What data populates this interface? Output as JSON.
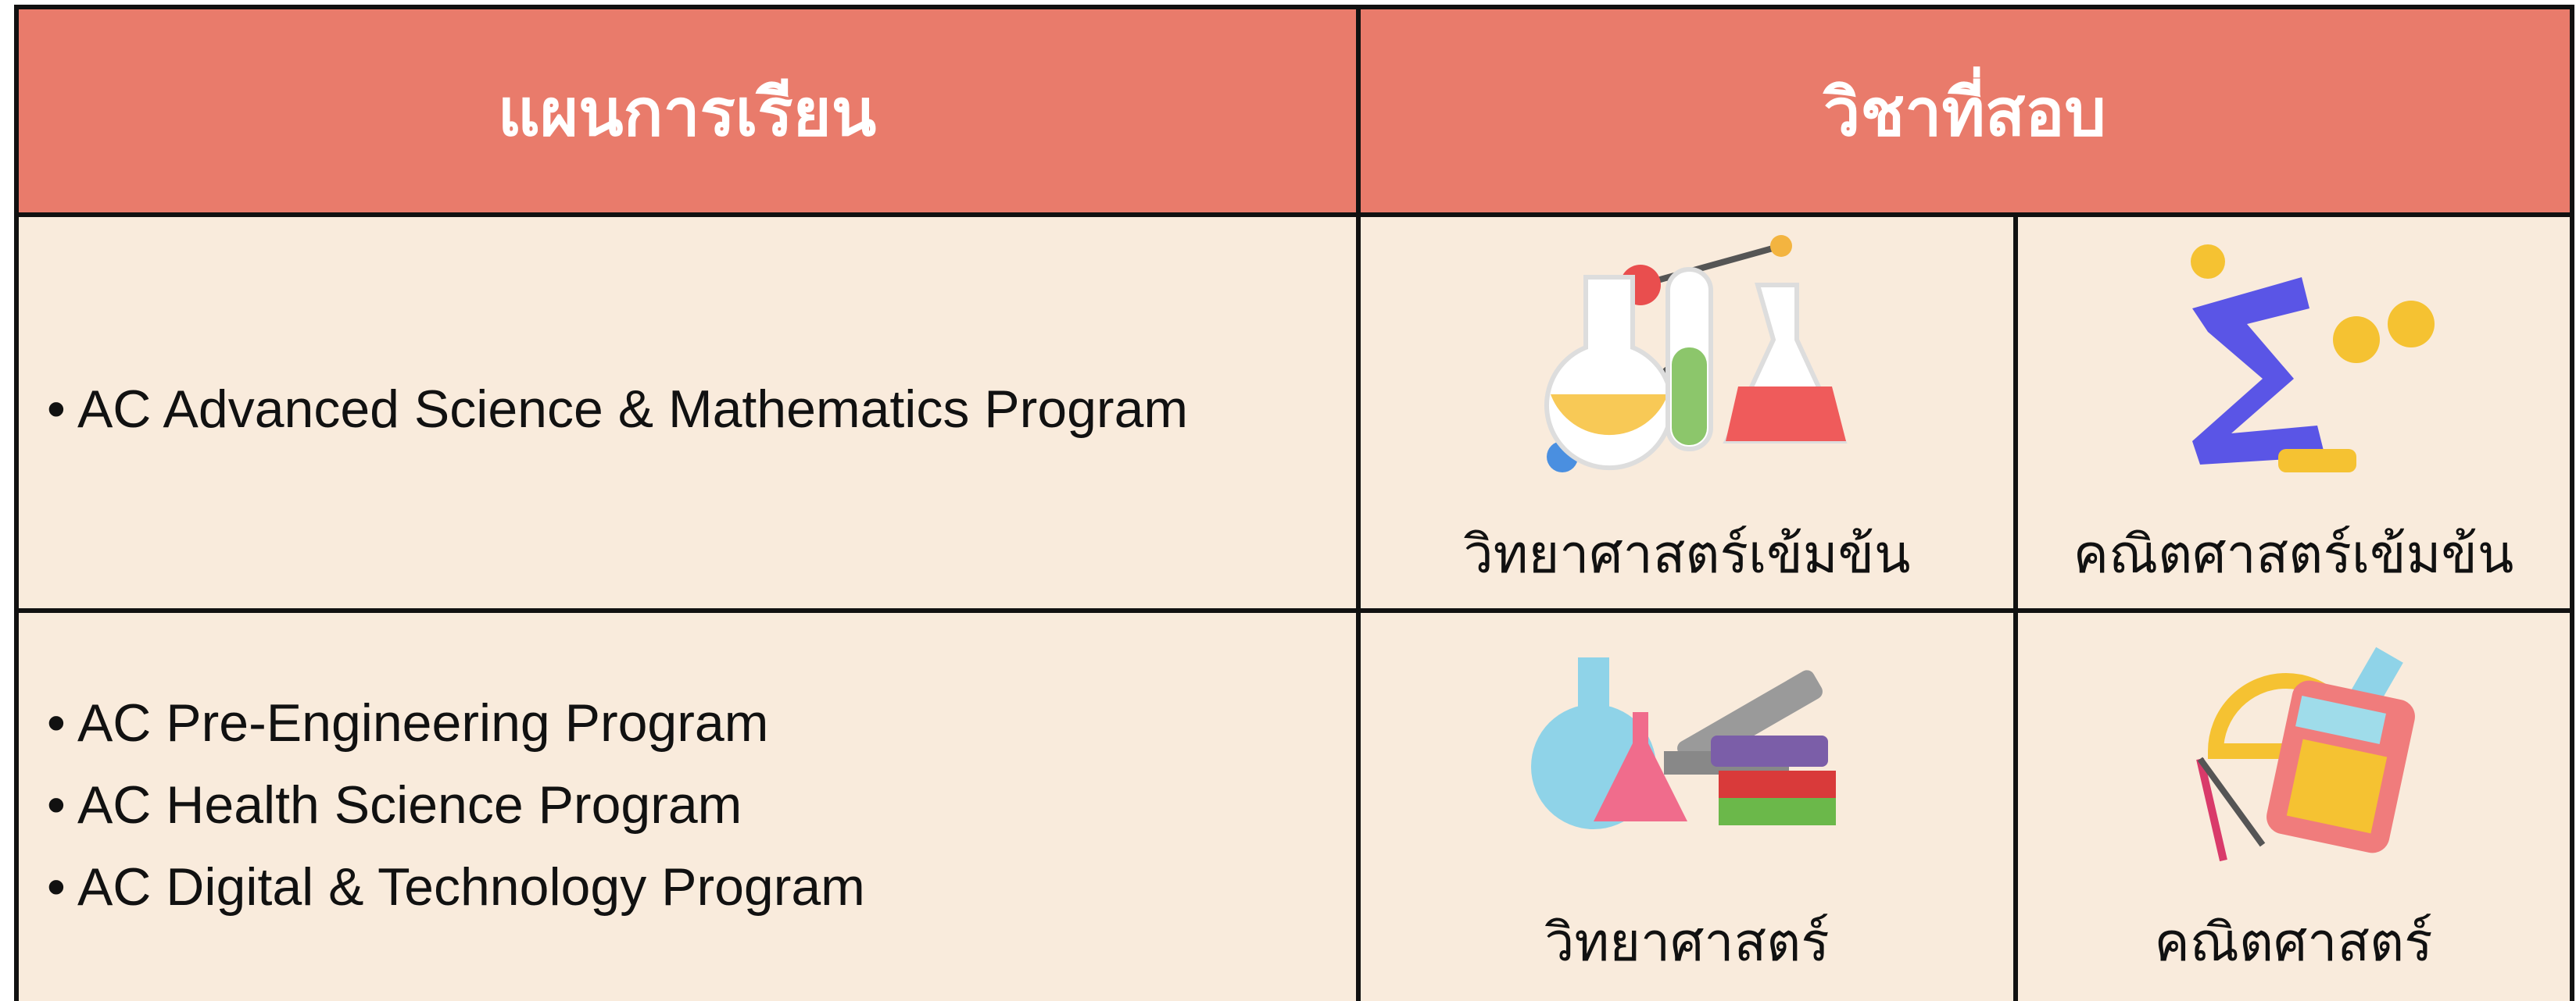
{
  "header": {
    "columns": [
      "แผนการเรียน",
      "วิชาที่สอบ"
    ]
  },
  "rows": [
    {
      "programs": [
        "• AC Advanced Science & Mathematics Program"
      ],
      "subjects": [
        "วิทยาศาสตร์เข้มข้น",
        "คณิตศาสตร์เข้มข้น"
      ]
    },
    {
      "programs": [
        "• AC Pre-Engineering Program",
        "• AC Health Science Program",
        "• AC Digital & Technology Program"
      ],
      "subjects": [
        "วิทยาศาสตร์",
        "คณิตศาสตร์"
      ]
    }
  ]
}
